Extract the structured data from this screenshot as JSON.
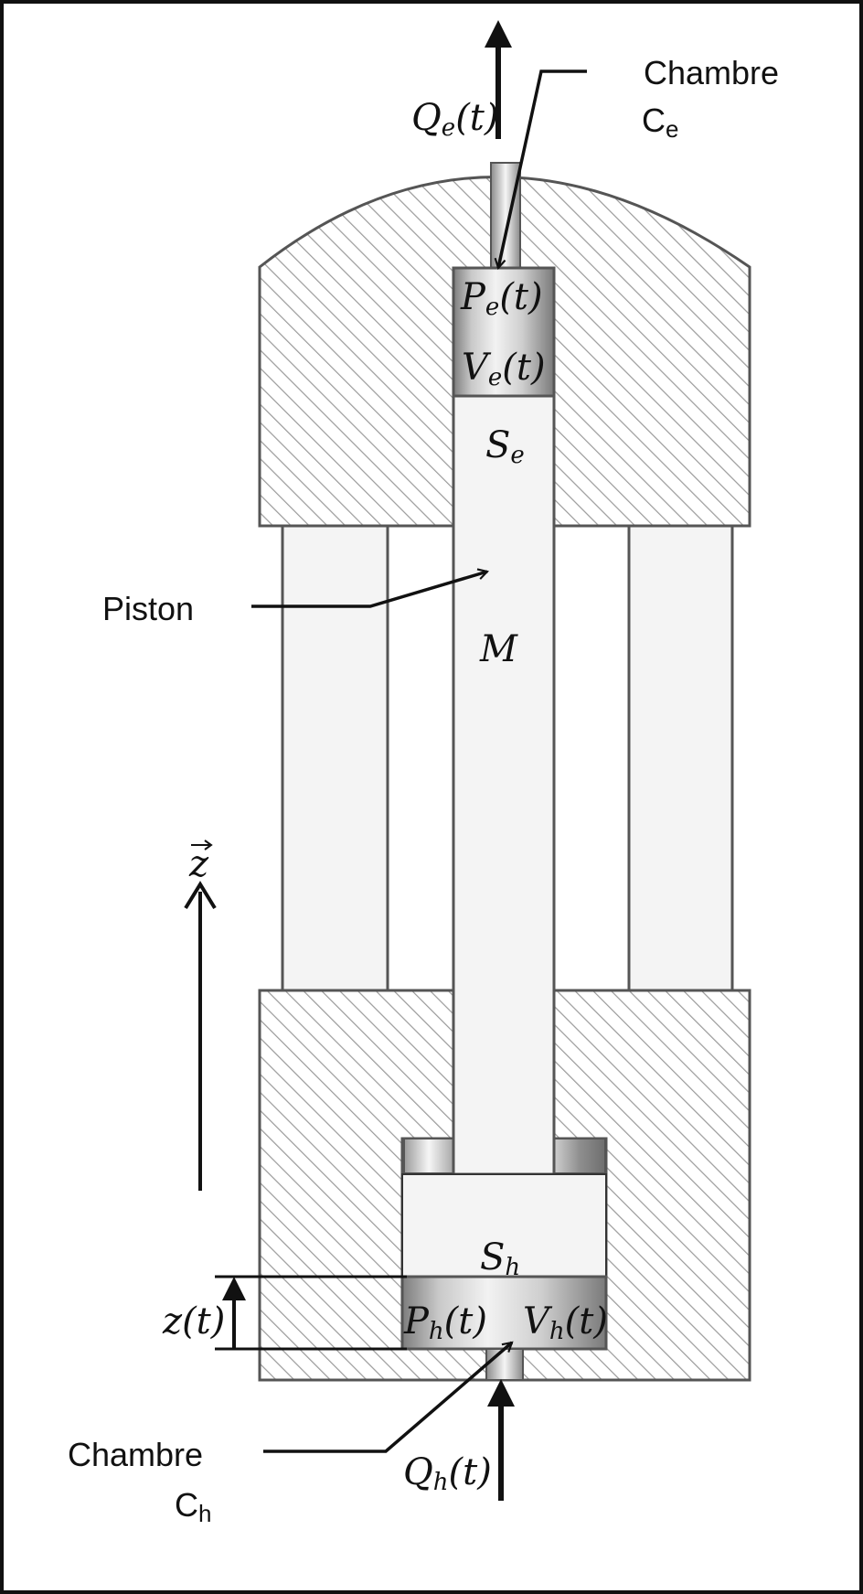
{
  "labels": {
    "chambre_e_line1": "Chambre",
    "chambre_e_sym": "C",
    "chambre_e_sub": "e",
    "chambre_h_line1": "Chambre",
    "chambre_h_sym": "C",
    "chambre_h_sub": "h",
    "piston": "Piston"
  },
  "math": {
    "qe": {
      "sym": "Q",
      "sub": "e",
      "arg": "(t)"
    },
    "pe": {
      "sym": "P",
      "sub": "e",
      "arg": "(t)"
    },
    "ve": {
      "sym": "V",
      "sub": "e",
      "arg": "(t)"
    },
    "se": {
      "sym": "S",
      "sub": "e"
    },
    "m": "M",
    "z_axis": "z",
    "sh": {
      "sym": "S",
      "sub": "h"
    },
    "zt": "z(t)",
    "ph": {
      "sym": "P",
      "sub": "h",
      "arg": "(t)"
    },
    "vh": {
      "sym": "V",
      "sub": "h",
      "arg": "(t)"
    },
    "qh": {
      "sym": "Q",
      "sub": "h",
      "arg": "(t)"
    }
  },
  "colors": {
    "hatch": "#9a9a9a",
    "outline": "#555555",
    "piston_fill": "#f4f4f4",
    "fluid_dark": "#7d7d7d",
    "fluid_light": "#f2f2f2"
  }
}
